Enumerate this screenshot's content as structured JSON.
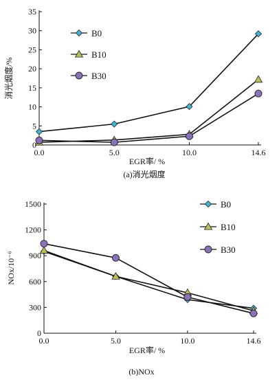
{
  "colors": {
    "B0": "#45b3cf",
    "B10": "#b9be5a",
    "B30": "#8a72b8",
    "line": "#111111"
  },
  "chart_data": [
    {
      "type": "line",
      "caption": "(a)消光烟度",
      "xlabel": "EGR率/ %",
      "ylabel": "消光烟度/%",
      "x": [
        0.0,
        5.0,
        10.0,
        14.6
      ],
      "x_tick_labels": [
        "0.0",
        "5.0",
        "10.0",
        "14.6"
      ],
      "ylim": [
        0,
        35
      ],
      "y_ticks": [
        0,
        5,
        10,
        15,
        20,
        25,
        30,
        35
      ],
      "legend_position": "top-left",
      "series": [
        {
          "name": "B0",
          "marker": "diamond",
          "values": [
            3.5,
            5.5,
            10.1,
            29.2
          ]
        },
        {
          "name": "B10",
          "marker": "triangle",
          "values": [
            0.7,
            1.3,
            2.8,
            17.2
          ]
        },
        {
          "name": "B30",
          "marker": "circle",
          "values": [
            1.2,
            0.7,
            2.3,
            13.5
          ]
        }
      ]
    },
    {
      "type": "line",
      "caption": "(b)NOx",
      "xlabel": "EGR率/ %",
      "ylabel": "NOx/10⁻⁶",
      "x": [
        0.0,
        5.0,
        10.0,
        14.6
      ],
      "x_tick_labels": [
        "0.0",
        "5.0",
        "10.0",
        "14.6"
      ],
      "ylim": [
        0,
        1500
      ],
      "y_ticks": [
        0,
        300,
        600,
        900,
        1200,
        1500
      ],
      "legend_position": "top-right",
      "series": [
        {
          "name": "B0",
          "marker": "diamond",
          "values": [
            950,
            660,
            390,
            290
          ]
        },
        {
          "name": "B10",
          "marker": "triangle",
          "values": [
            960,
            660,
            470,
            260
          ]
        },
        {
          "name": "B30",
          "marker": "circle",
          "values": [
            1040,
            875,
            420,
            230
          ]
        }
      ]
    }
  ]
}
